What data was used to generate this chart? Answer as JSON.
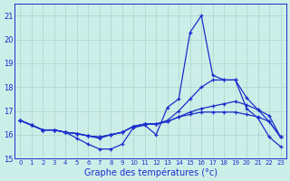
{
  "xlabel": "Graphe des températures (°c)",
  "bg_color": "#cceee8",
  "grid_color": "#aad4cc",
  "line_color": "#1a2ecc",
  "axis_color": "#1a2ecc",
  "xlim": [
    -0.5,
    23.5
  ],
  "ylim": [
    15,
    21.5
  ],
  "yticks": [
    15,
    16,
    17,
    18,
    19,
    20,
    21
  ],
  "xticks": [
    0,
    1,
    2,
    3,
    4,
    5,
    6,
    7,
    8,
    9,
    10,
    11,
    12,
    13,
    14,
    15,
    16,
    17,
    18,
    19,
    20,
    21,
    22,
    23
  ],
  "series": [
    [
      16.6,
      16.4,
      16.2,
      16.2,
      16.1,
      15.85,
      15.6,
      15.4,
      15.4,
      15.6,
      16.3,
      16.4,
      16.0,
      17.15,
      17.5,
      20.3,
      21.0,
      18.5,
      18.3,
      18.3,
      17.1,
      16.7,
      15.9,
      15.5
    ],
    [
      16.6,
      16.4,
      16.2,
      16.2,
      16.1,
      16.05,
      15.95,
      15.85,
      16.0,
      16.1,
      16.35,
      16.45,
      16.45,
      16.6,
      17.0,
      17.5,
      18.0,
      18.3,
      18.3,
      18.3,
      17.55,
      17.05,
      16.55,
      15.9
    ],
    [
      16.6,
      16.4,
      16.2,
      16.2,
      16.1,
      16.05,
      15.95,
      15.9,
      16.0,
      16.1,
      16.35,
      16.45,
      16.45,
      16.55,
      16.75,
      16.95,
      17.1,
      17.2,
      17.3,
      17.4,
      17.25,
      17.05,
      16.8,
      15.9
    ],
    [
      16.6,
      16.4,
      16.2,
      16.2,
      16.1,
      16.05,
      15.95,
      15.9,
      16.0,
      16.1,
      16.35,
      16.45,
      16.45,
      16.55,
      16.75,
      16.85,
      16.95,
      16.95,
      16.95,
      16.95,
      16.85,
      16.75,
      16.55,
      15.9
    ]
  ]
}
